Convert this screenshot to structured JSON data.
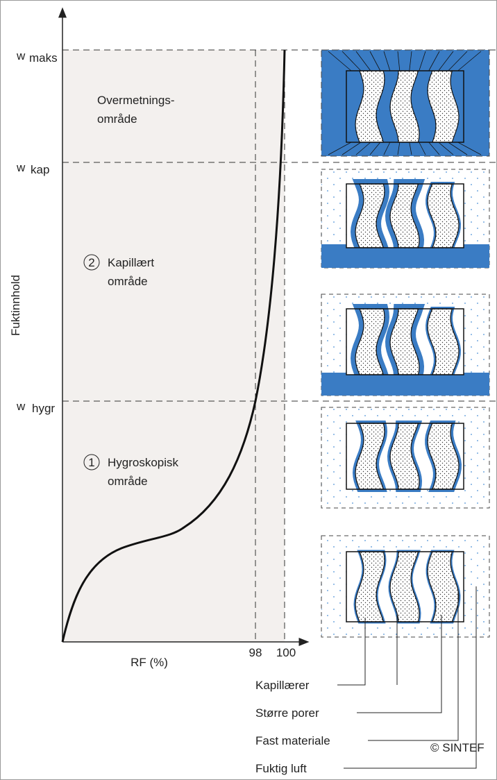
{
  "axis": {
    "y_label": "Fuktinnhold",
    "x_label": "RF (%)",
    "x_ticks": [
      "98",
      "100"
    ]
  },
  "levels": [
    {
      "symbol": "w",
      "subscript": "maks"
    },
    {
      "symbol": "w",
      "subscript": "kap"
    },
    {
      "symbol": "w",
      "subscript": "hygr"
    }
  ],
  "regions": [
    {
      "lines": [
        "Overmetnings-",
        "område"
      ]
    },
    {
      "number": "2",
      "lines": [
        "Kapillært",
        "område"
      ]
    },
    {
      "number": "1",
      "lines": [
        "Hygroskopisk",
        "område"
      ]
    }
  ],
  "legend": [
    "Kapillærer",
    "Større porer",
    "Fast materiale",
    "Fuktig luft"
  ],
  "credit": "© SINTEF"
}
